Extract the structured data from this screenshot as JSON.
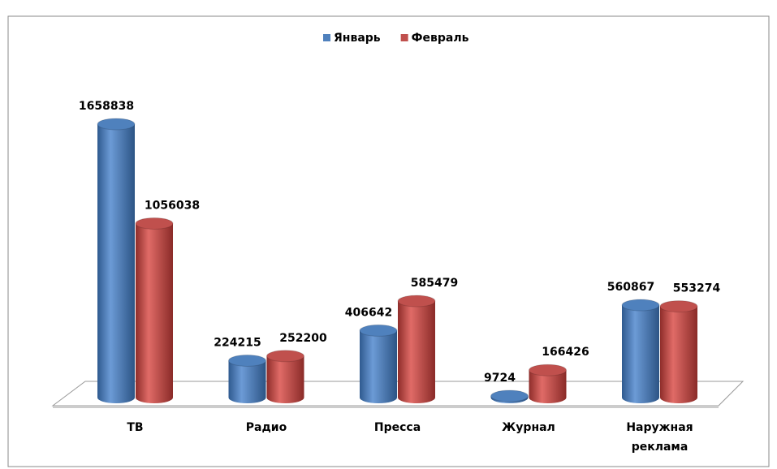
{
  "chart_data": {
    "type": "bar3d",
    "categories": [
      "ТВ",
      "Радио",
      "Пресса",
      "Журнал",
      "Наружная реклама"
    ],
    "series": [
      {
        "name": "Январь",
        "color": "#4f81bd",
        "values": [
          1658838,
          224215,
          406642,
          9724,
          560867
        ]
      },
      {
        "name": "Февраль",
        "color": "#c0504d",
        "values": [
          1056038,
          252200,
          585479,
          166426,
          553274
        ]
      }
    ],
    "legend": "top"
  }
}
